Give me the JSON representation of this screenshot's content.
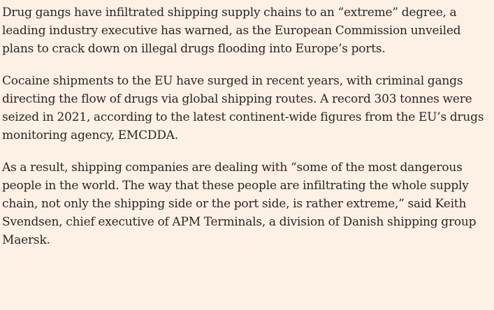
{
  "article": {
    "paragraphs": [
      "Drug gangs have infiltrated shipping supply chains to an “extreme” degree, a leading industry executive has warned, as the European Commission unveiled plans to crack down on illegal drugs flooding into Europe’s ports.",
      "Cocaine shipments to the EU have surged in recent years, with criminal gangs directing the flow of drugs via global shipping routes. A record 303 tonnes were seized in 2021, according to the latest continent-wide figures from the EU’s drugs monitoring agency, EMCDDA.",
      "As a result, shipping companies are dealing with “some of the most dangerous people in the world. The way that these people are infiltrating the whole supply chain, not only the shipping side or the port side, is rather extreme,” said Keith Svendsen, chief executive of APM Terminals, a division of Danish shipping group Maersk."
    ]
  }
}
